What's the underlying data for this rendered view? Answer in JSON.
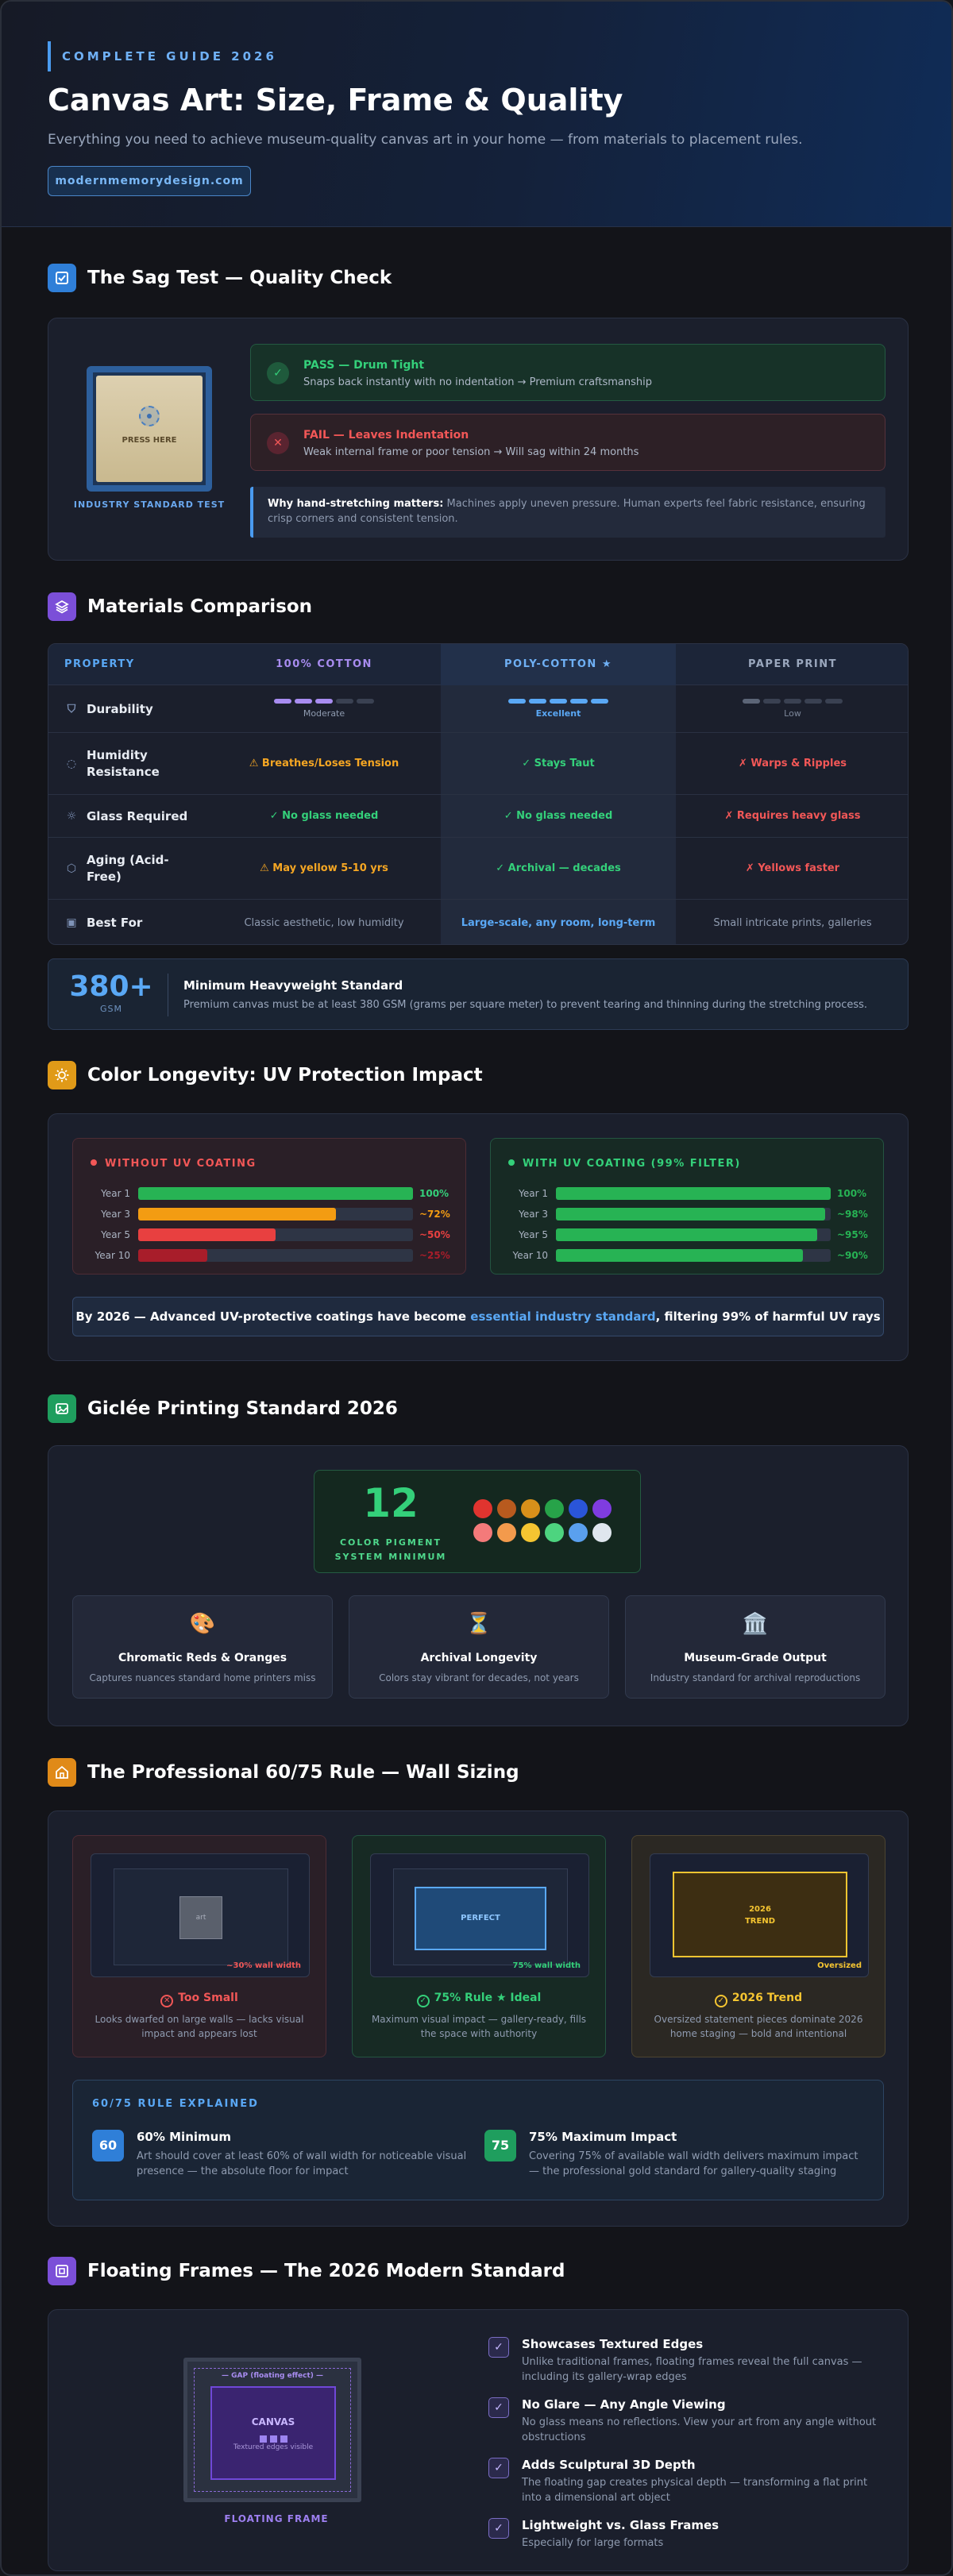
{
  "hero": {
    "kicker": "COMPLETE GUIDE 2026",
    "title": "Canvas Art: Size, Frame & Quality",
    "subtitle": "Everything you need to achieve museum-quality canvas art in your home — from materials to placement rules.",
    "url": "modernmemorydesign.com"
  },
  "sag": {
    "heading": "The Sag Test — Quality Check",
    "press_label": "PRESS HERE",
    "standard_label": "INDUSTRY STANDARD TEST",
    "pass_title": "PASS — Drum Tight",
    "pass_desc": "Snaps back instantly with no indentation → Premium craftsmanship",
    "fail_title": "FAIL — Leaves Indentation",
    "fail_desc": "Weak internal frame or poor tension → Will sag within 24 months",
    "why_title": "Why hand-stretching matters:",
    "why_desc": "Machines apply uneven pressure. Human experts feel fabric resistance, ensuring crisp corners and consistent tension."
  },
  "materials": {
    "heading": "Materials Comparison",
    "headers": [
      "PROPERTY",
      "100% COTTON",
      "POLY-COTTON ★",
      "PAPER PRINT"
    ],
    "rows": [
      {
        "label": "Durability",
        "cotton": "Moderate",
        "poly": "Excellent",
        "paper": "Low"
      },
      {
        "label": "Humidity Resistance",
        "cotton": "⚠ Breathes/Loses Tension",
        "poly": "✓ Stays Taut",
        "paper": "✗ Warps & Ripples"
      },
      {
        "label": "Glass Required",
        "cotton": "✓ No glass needed",
        "poly": "✓ No glass needed",
        "paper": "✗ Requires heavy glass"
      },
      {
        "label": "Aging (Acid-Free)",
        "cotton": "⚠ May yellow 5-10 yrs",
        "poly": "✓ Archival — decades",
        "paper": "✗ Yellows faster"
      },
      {
        "label": "Best For",
        "cotton": "Classic aesthetic, low humidity",
        "poly": "Large-scale, any room, long-term",
        "paper": "Small intricate prints, galleries"
      }
    ],
    "durability_levels": {
      "cotton": 3,
      "poly": 5,
      "paper": 1
    },
    "gsm_value": "380+",
    "gsm_unit": "GSM",
    "gsm_title": "Minimum Heavyweight Standard",
    "gsm_desc": "Premium canvas must be at least 380 GSM (grams per square meter) to prevent tearing and thinning during the stretching process."
  },
  "uv": {
    "heading": "Color Longevity: UV Protection Impact",
    "without_title": "WITHOUT UV COATING",
    "with_title": "WITH UV COATING (99% FILTER)",
    "without": [
      {
        "year": "Year 1",
        "pct": 100,
        "label": "100%"
      },
      {
        "year": "Year 3",
        "pct": 72,
        "label": "~72%"
      },
      {
        "year": "Year 5",
        "pct": 50,
        "label": "~50%"
      },
      {
        "year": "Year 10",
        "pct": 25,
        "label": "~25%"
      }
    ],
    "with": [
      {
        "year": "Year 1",
        "pct": 100,
        "label": "100%"
      },
      {
        "year": "Year 3",
        "pct": 98,
        "label": "~98%"
      },
      {
        "year": "Year 5",
        "pct": 95,
        "label": "~95%"
      },
      {
        "year": "Year 10",
        "pct": 90,
        "label": "~90%"
      }
    ],
    "note_pre": "By 2026 — Advanced UV-protective coatings have become ",
    "note_hl": "essential industry standard",
    "note_post": ", filtering 99% of harmful UV rays"
  },
  "giclee": {
    "heading": "Giclée Printing Standard 2026",
    "pigment_count": "12",
    "pigment_label": "COLOR PIGMENT SYSTEM MINIMUM",
    "pigment_colors": [
      "#e0342f",
      "#b85a1e",
      "#d8901a",
      "#27a349",
      "#2a55d8",
      "#7f3ce0",
      "#f47a7a",
      "#f39a4c",
      "#f5c531",
      "#4dd47f",
      "#5aa0ee",
      "#dfe6ee"
    ],
    "features": [
      {
        "icon": "🎨",
        "title": "Chromatic Reds & Oranges",
        "desc": "Captures nuances standard home printers miss"
      },
      {
        "icon": "⏳",
        "title": "Archival Longevity",
        "desc": "Colors stay vibrant for decades, not years"
      },
      {
        "icon": "🏛️",
        "title": "Museum-Grade Output",
        "desc": "Industry standard for archival reproductions"
      }
    ]
  },
  "rule": {
    "heading": "The Professional 60/75 Rule — Wall Sizing",
    "cards": [
      {
        "art": "art",
        "caption": "~30% wall width",
        "title": "Too Small",
        "desc": "Looks dwarfed on large walls — lacks visual impact and appears lost"
      },
      {
        "art": "PERFECT",
        "caption": "75% wall width",
        "title": "75% Rule ★ Ideal",
        "desc": "Maximum visual impact — gallery-ready, fills the space with authority"
      },
      {
        "art_line1": "2026",
        "art_line2": "TREND",
        "caption": "Oversized",
        "title": "2026 Trend",
        "desc": "Oversized statement pieces dominate 2026 home staging — bold and intentional"
      }
    ],
    "explain_title": "60/75 RULE EXPLAINED",
    "min_badge": "60",
    "min_title": "60% Minimum",
    "min_desc": "Art should cover at least 60% of wall width for noticeable visual presence — the absolute floor for impact",
    "max_badge": "75",
    "max_title": "75% Maximum Impact",
    "max_desc": "Covering 75% of available wall width delivers maximum impact — the professional gold standard for gallery-quality staging"
  },
  "floating": {
    "heading": "Floating Frames — The 2026 Modern Standard",
    "gap_label": "— GAP (floating effect) —",
    "canvas_label": "CANVAS",
    "edges_label": "Textured edges visible",
    "frame_label": "FLOATING FRAME",
    "benefits": [
      {
        "title": "Showcases Textured Edges",
        "desc": "Unlike traditional frames, floating frames reveal the full canvas — including its gallery-wrap edges"
      },
      {
        "title": "No Glare — Any Angle Viewing",
        "desc": "No glass means no reflections. View your art from any angle without obstructions"
      },
      {
        "title": "Adds Sculptural 3D Depth",
        "desc": "The floating gap creates physical depth — transforming a flat print into a dimensional art object"
      },
      {
        "title": "Lightweight vs. Glass Frames",
        "desc": "Especially for large formats"
      }
    ]
  },
  "colors": {
    "accent_blue": "#4a9bf0",
    "pass_green": "#34d07a",
    "fail_red": "#f25757",
    "warn_orange": "#f5a623"
  }
}
